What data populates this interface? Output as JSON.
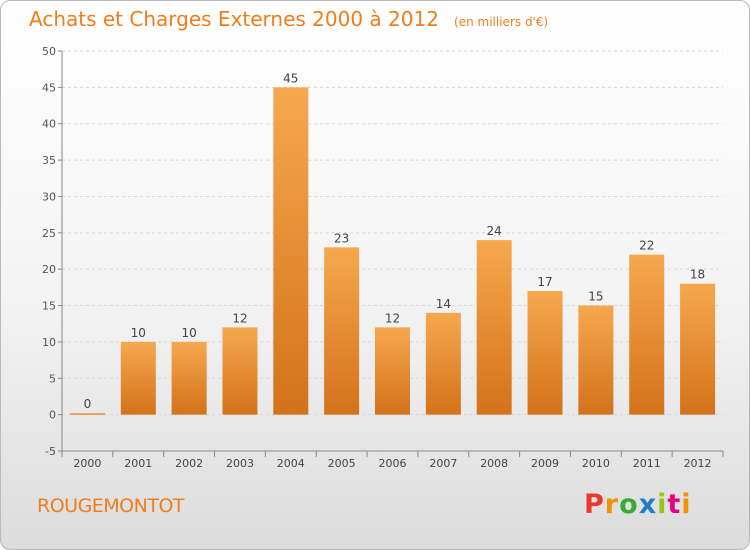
{
  "header": {
    "title": "Achats et Charges Externes 2000 à 2012",
    "subtitle": "(en milliers d'€)"
  },
  "footer": {
    "commune": "ROUGEMONTOT",
    "logo_text": "Proxiti"
  },
  "colors": {
    "accent": "#f07d1a",
    "bar_light": "#f6a84e",
    "bar_dark": "#d4721a",
    "axis": "#888888",
    "grid": "#d7d7d7"
  },
  "chart_data": {
    "type": "bar",
    "title": "Achats et Charges Externes 2000 à 2012",
    "subtitle": "(en milliers d'€)",
    "xlabel": "",
    "ylabel": "",
    "categories": [
      "2000",
      "2001",
      "2002",
      "2003",
      "2004",
      "2005",
      "2006",
      "2007",
      "2008",
      "2009",
      "2010",
      "2011",
      "2012"
    ],
    "values": [
      0,
      10,
      10,
      12,
      45,
      23,
      12,
      14,
      24,
      17,
      15,
      22,
      18
    ],
    "ylim": [
      -5,
      50
    ],
    "yticks": [
      -5,
      0,
      5,
      10,
      15,
      20,
      25,
      30,
      35,
      40,
      45,
      50
    ],
    "grid": "horizontal dashed",
    "legend": "none"
  }
}
